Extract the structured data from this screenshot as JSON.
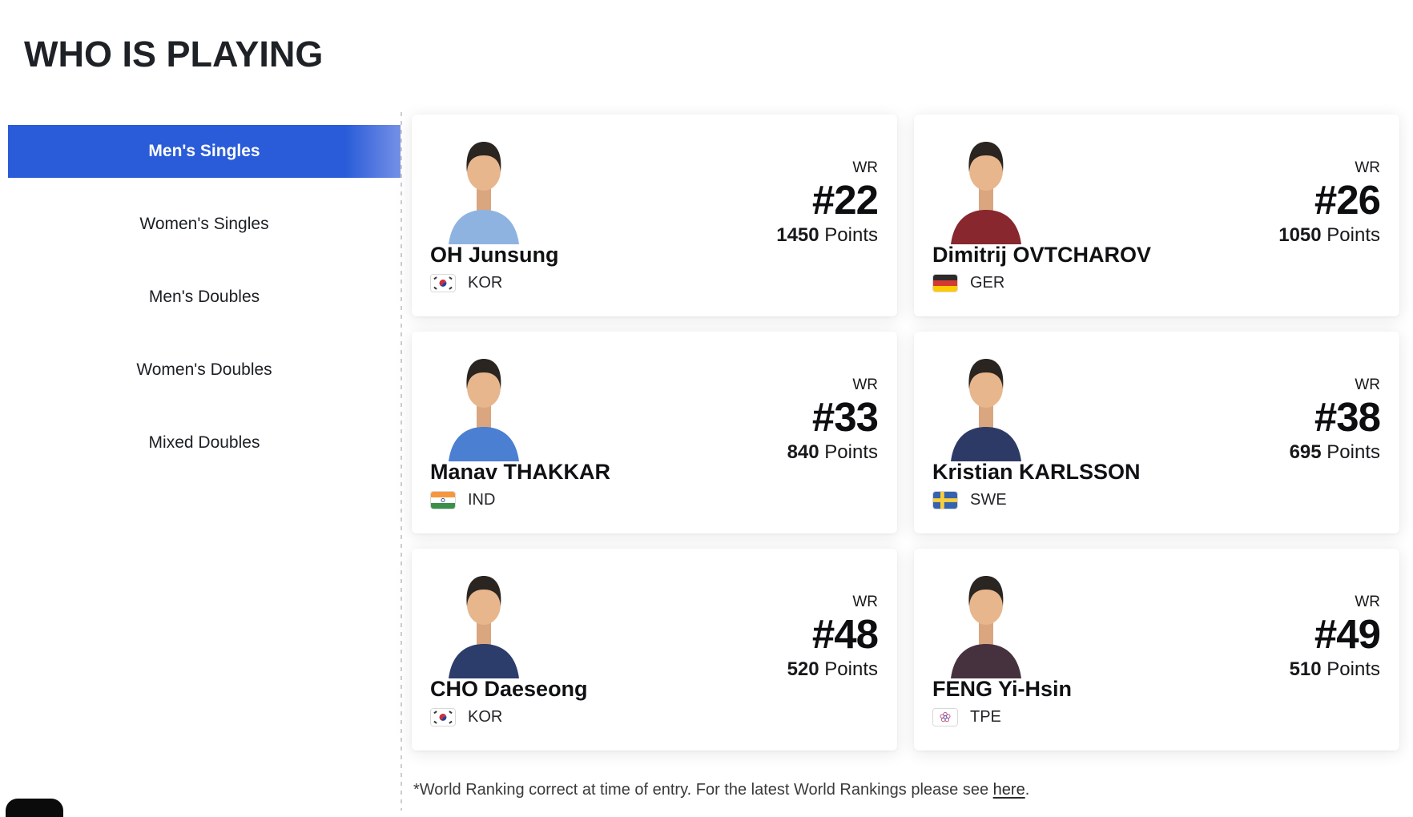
{
  "page": {
    "title": "WHO IS PLAYING",
    "accent_blue": "#2a5cd9",
    "divider_color": "#cdcdcd"
  },
  "sidebar": {
    "items": [
      {
        "label": "Men's Singles",
        "selected": true
      },
      {
        "label": "Women's Singles",
        "selected": false
      },
      {
        "label": "Men's Doubles",
        "selected": false
      },
      {
        "label": "Women's Doubles",
        "selected": false
      },
      {
        "label": "Mixed Doubles",
        "selected": false
      }
    ]
  },
  "card_labels": {
    "wr": "WR",
    "points": "Points"
  },
  "players": [
    {
      "name": "OH Junsung",
      "country_code": "KOR",
      "flag": "KOR",
      "world_rank": "#22",
      "points": "1450",
      "jersey_color": "#8fb3e0"
    },
    {
      "name": "Dimitrij OVTCHAROV",
      "country_code": "GER",
      "flag": "GER",
      "world_rank": "#26",
      "points": "1050",
      "jersey_color": "#88272e"
    },
    {
      "name": "Manav THAKKAR",
      "country_code": "IND",
      "flag": "IND",
      "world_rank": "#33",
      "points": "840",
      "jersey_color": "#4a7fd1"
    },
    {
      "name": "Kristian KARLSSON",
      "country_code": "SWE",
      "flag": "SWE",
      "world_rank": "#38",
      "points": "695",
      "jersey_color": "#2e3a66"
    },
    {
      "name": "CHO Daeseong",
      "country_code": "KOR",
      "flag": "KOR",
      "world_rank": "#48",
      "points": "520",
      "jersey_color": "#2c3c6b"
    },
    {
      "name": "FENG Yi-Hsin",
      "country_code": "TPE",
      "flag": "TPE",
      "world_rank": "#49",
      "points": "510",
      "jersey_color": "#46323e"
    }
  ],
  "footer": {
    "note_prefix": "*World Ranking correct at time of entry. For the latest World Rankings please see ",
    "link_text": "here",
    "note_suffix": "."
  }
}
